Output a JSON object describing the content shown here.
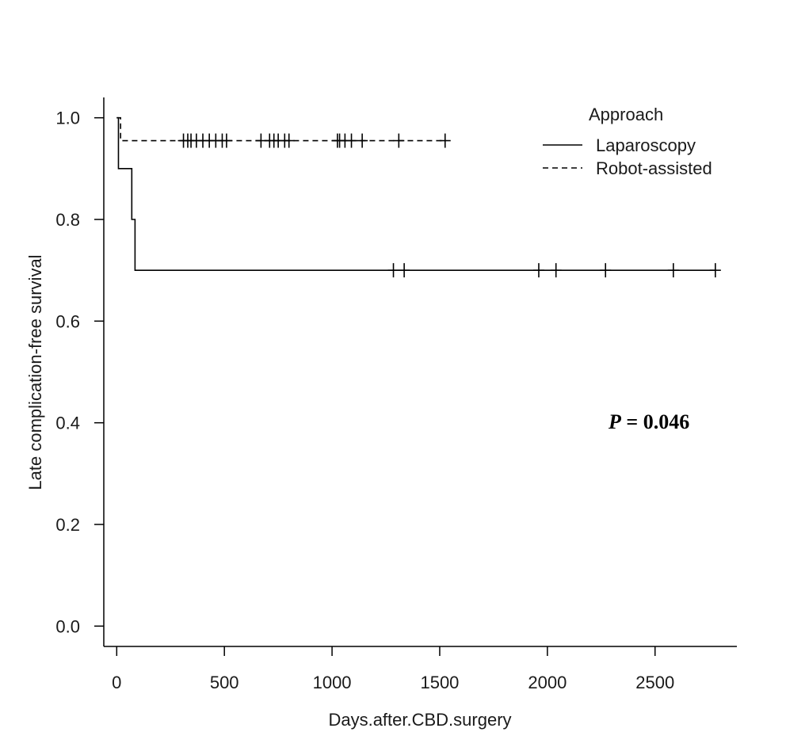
{
  "chart_data": {
    "type": "line",
    "title": "",
    "xlabel": "Days.after.CBD.surgery",
    "ylabel": "Late complication-free survival",
    "xlim": [
      -60,
      2880
    ],
    "ylim": [
      -0.04,
      1.04
    ],
    "x_ticks": [
      0,
      500,
      1000,
      1500,
      2000,
      2500
    ],
    "x_tick_labels": [
      "0",
      "500",
      "1000",
      "1500",
      "2000",
      "2500"
    ],
    "y_ticks": [
      0.0,
      0.2,
      0.4,
      0.6,
      0.8,
      1.0
    ],
    "y_tick_labels": [
      "0.0",
      "0.2",
      "0.4",
      "0.6",
      "0.8",
      "1.0"
    ],
    "grid": false,
    "legend": {
      "title": "Approach",
      "placement": "top-right"
    },
    "annotation": {
      "p_label": "P",
      "p_value": " = 0.046"
    },
    "series": [
      {
        "name": "Laparoscopy",
        "line_style": "solid",
        "color": "#000000",
        "steps": [
          [
            0,
            1.0
          ],
          [
            8,
            0.9
          ],
          [
            70,
            0.8
          ],
          [
            85,
            0.7
          ],
          [
            2780,
            0.7
          ]
        ],
        "censor_times": [
          1285,
          1335,
          1960,
          2040,
          2270,
          2585,
          2780
        ]
      },
      {
        "name": "Robot-assisted",
        "line_style": "dashed",
        "color": "#000000",
        "steps": [
          [
            0,
            1.0
          ],
          [
            18,
            0.955
          ],
          [
            1525,
            0.955
          ]
        ],
        "censor_times": [
          310,
          330,
          345,
          370,
          400,
          430,
          460,
          490,
          510,
          670,
          710,
          730,
          750,
          780,
          800,
          1025,
          1035,
          1060,
          1090,
          1140,
          1310,
          1525
        ]
      }
    ]
  }
}
